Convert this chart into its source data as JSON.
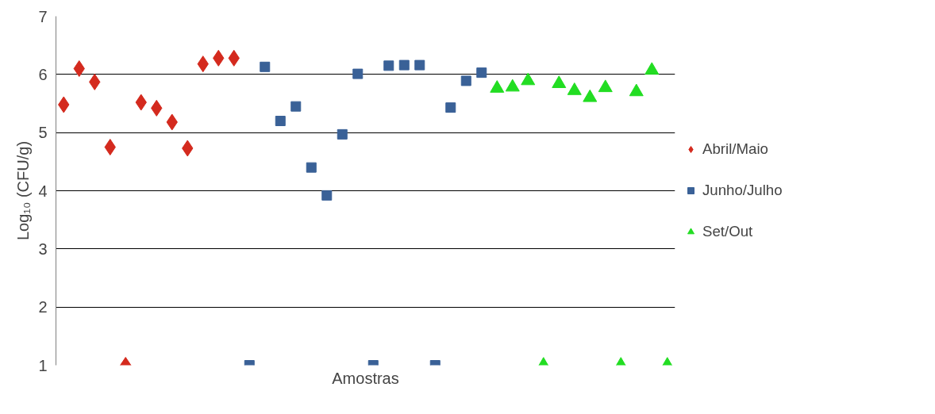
{
  "chart_data": {
    "type": "scatter",
    "xlabel": "Amostras",
    "ylabel": "Log₁₀ (CFU/g)",
    "categories": [
      null,
      null,
      null,
      null,
      null,
      null,
      null,
      null,
      null,
      null,
      null,
      null,
      null,
      null,
      null,
      null,
      null,
      null,
      null,
      null,
      null,
      null,
      null,
      null,
      null,
      null,
      null,
      null,
      null,
      null,
      null,
      null,
      null,
      null,
      null,
      null,
      null,
      null,
      null,
      null
    ],
    "series": [
      {
        "name": "Abril/Maio",
        "color": "#d42a1e",
        "marker": "diamond",
        "values": [
          5.48,
          6.1,
          5.87,
          4.75,
          1.0,
          5.52,
          5.42,
          5.18,
          4.73,
          6.18,
          6.28,
          6.28,
          null,
          null,
          null,
          null,
          null,
          null,
          null,
          null,
          null,
          null,
          null,
          null,
          null,
          null,
          null,
          null,
          null,
          null,
          null,
          null,
          null,
          null,
          null,
          null,
          null,
          null,
          null,
          null
        ]
      },
      {
        "name": "Junho/Julho",
        "color": "#3a6197",
        "marker": "square",
        "values": [
          null,
          null,
          null,
          null,
          null,
          null,
          null,
          null,
          null,
          null,
          null,
          null,
          1.0,
          6.13,
          5.2,
          5.45,
          4.4,
          3.92,
          4.97,
          6.01,
          1.0,
          6.15,
          6.16,
          6.16,
          1.0,
          5.43,
          5.89,
          6.03,
          null,
          null,
          null,
          null,
          null,
          null,
          null,
          null,
          null,
          null,
          null,
          null
        ]
      },
      {
        "name": "Set/Out",
        "color": "#22dd22",
        "marker": "triangle",
        "values": [
          null,
          null,
          null,
          null,
          null,
          null,
          null,
          null,
          null,
          null,
          null,
          null,
          null,
          null,
          null,
          null,
          null,
          null,
          null,
          null,
          null,
          null,
          null,
          null,
          null,
          null,
          null,
          null,
          5.76,
          5.78,
          5.89,
          1.0,
          5.84,
          5.72,
          5.6,
          5.77,
          1.0,
          5.7,
          6.07,
          1.0
        ]
      }
    ],
    "ylim": [
      1,
      7
    ],
    "yticks": [
      1,
      2,
      3,
      4,
      5,
      6,
      7
    ],
    "grid": "y",
    "legend": "right",
    "tick_labels": "y"
  }
}
